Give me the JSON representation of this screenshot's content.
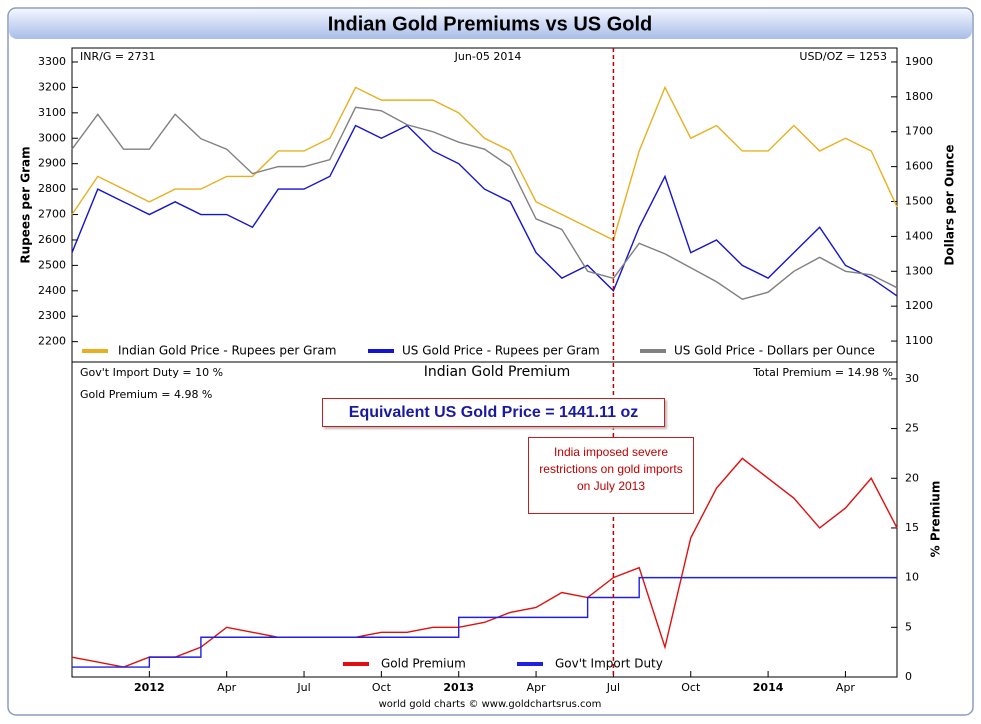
{
  "title": "Indian Gold Premiums vs US Gold",
  "footer": "world gold charts © www.goldchartsrus.com",
  "event_date": "2013-07",
  "equivalent_price": "Equivalent US Gold Price = 1441.11 oz",
  "annotation": "India imposed severe restrictions on gold imports on July 2013",
  "chart_data": [
    {
      "type": "line",
      "left_note": "INR/G = 2731",
      "center_note": "Jun-05  2014",
      "right_note": "USD/OZ = 1253",
      "y_label": "Rupees per Gram",
      "y2_label": "Dollars per Ounce",
      "x": [
        "2011-10",
        "2011-11",
        "2011-12",
        "2012-01",
        "2012-02",
        "2012-03",
        "2012-04",
        "2012-05",
        "2012-06",
        "2012-07",
        "2012-08",
        "2012-09",
        "2012-10",
        "2012-11",
        "2012-12",
        "2013-01",
        "2013-02",
        "2013-03",
        "2013-04",
        "2013-05",
        "2013-06",
        "2013-07",
        "2013-08",
        "2013-09",
        "2013-10",
        "2013-11",
        "2013-12",
        "2014-01",
        "2014-02",
        "2014-03",
        "2014-04",
        "2014-05",
        "2014-06"
      ],
      "xlim": [
        "2011-10",
        "2014-06"
      ],
      "ylim": [
        2120,
        3355
      ],
      "yticks": [
        2200,
        2300,
        2400,
        2500,
        2600,
        2700,
        2800,
        2900,
        3000,
        3100,
        3200,
        3300
      ],
      "y2lim": [
        1040,
        1940
      ],
      "y2ticks": [
        1100,
        1200,
        1300,
        1400,
        1500,
        1600,
        1700,
        1800,
        1900
      ],
      "series": [
        {
          "name": "Indian Gold Price - Rupees per Gram",
          "color": "#e8b020",
          "values": [
            2700,
            2850,
            2800,
            2750,
            2800,
            2800,
            2850,
            2850,
            2950,
            2950,
            3000,
            3200,
            3150,
            3150,
            3150,
            3100,
            3000,
            2950,
            2750,
            2700,
            2650,
            2600,
            2950,
            3200,
            3000,
            3050,
            2950,
            2950,
            3050,
            2950,
            3000,
            2950,
            2730
          ]
        },
        {
          "name": "US Gold Price - Rupees per Gram",
          "color": "#1414d0",
          "values": [
            2550,
            2800,
            2750,
            2700,
            2750,
            2700,
            2700,
            2650,
            2800,
            2800,
            2850,
            3050,
            3000,
            3050,
            2950,
            2900,
            2800,
            2750,
            2550,
            2450,
            2500,
            2400,
            2650,
            2850,
            2550,
            2600,
            2500,
            2450,
            2550,
            2650,
            2500,
            2450,
            2380
          ]
        },
        {
          "name": "US Gold Price - Dollars per Ounce",
          "color": "#808080",
          "axis": "y2",
          "values": [
            1650,
            1750,
            1650,
            1650,
            1750,
            1680,
            1650,
            1580,
            1600,
            1600,
            1620,
            1770,
            1760,
            1720,
            1700,
            1670,
            1650,
            1600,
            1450,
            1420,
            1300,
            1280,
            1380,
            1350,
            1310,
            1270,
            1220,
            1240,
            1300,
            1340,
            1300,
            1290,
            1253
          ]
        }
      ]
    },
    {
      "type": "line",
      "title": "Indian Gold Premium",
      "left_note": "Gov't Import Duty = 10 %",
      "left_note2": "Gold Premium = 4.98 %",
      "right_note": "Total Premium = 14.98 %",
      "y_label": "% Premium",
      "yaxis_side": "right",
      "x": [
        "2011-10",
        "2011-11",
        "2011-12",
        "2012-01",
        "2012-02",
        "2012-03",
        "2012-04",
        "2012-05",
        "2012-06",
        "2012-07",
        "2012-08",
        "2012-09",
        "2012-10",
        "2012-11",
        "2012-12",
        "2013-01",
        "2013-02",
        "2013-03",
        "2013-04",
        "2013-05",
        "2013-06",
        "2013-07",
        "2013-08",
        "2013-09",
        "2013-10",
        "2013-11",
        "2013-12",
        "2014-01",
        "2014-02",
        "2014-03",
        "2014-04",
        "2014-05",
        "2014-06"
      ],
      "xlim": [
        "2011-10",
        "2014-06"
      ],
      "xticks": [
        {
          "value": "2012-01",
          "label": "2012"
        },
        {
          "value": "2012-04",
          "label": "Apr"
        },
        {
          "value": "2012-07",
          "label": "Jul"
        },
        {
          "value": "2012-10",
          "label": "Oct"
        },
        {
          "value": "2013-01",
          "label": "2013"
        },
        {
          "value": "2013-04",
          "label": "Apr"
        },
        {
          "value": "2013-07",
          "label": "Jul"
        },
        {
          "value": "2013-10",
          "label": "Oct"
        },
        {
          "value": "2014-01",
          "label": "2014"
        },
        {
          "value": "2014-04",
          "label": "Apr"
        }
      ],
      "ylim": [
        0,
        31.7
      ],
      "yticks": [
        0,
        5,
        10,
        15,
        20,
        25,
        30
      ],
      "series": [
        {
          "name": "Gold Premium",
          "color": "#e01010",
          "values": [
            2,
            1.5,
            1,
            2,
            2,
            3,
            5,
            4.5,
            4,
            4,
            4,
            4,
            4.5,
            4.5,
            5,
            5,
            5.5,
            6.5,
            7,
            8.5,
            8,
            10,
            11,
            3,
            14,
            19,
            22,
            20,
            18,
            15,
            17,
            20,
            15
          ]
        },
        {
          "name": "Gov't Import Duty",
          "color": "#2020e0",
          "step": true,
          "values": [
            1,
            1,
            1,
            2,
            2,
            4,
            4,
            4,
            4,
            4,
            4,
            4,
            4,
            4,
            4,
            6,
            6,
            6,
            6,
            6,
            8,
            8,
            10,
            10,
            10,
            10,
            10,
            10,
            10,
            10,
            10,
            10,
            10
          ]
        }
      ]
    }
  ]
}
